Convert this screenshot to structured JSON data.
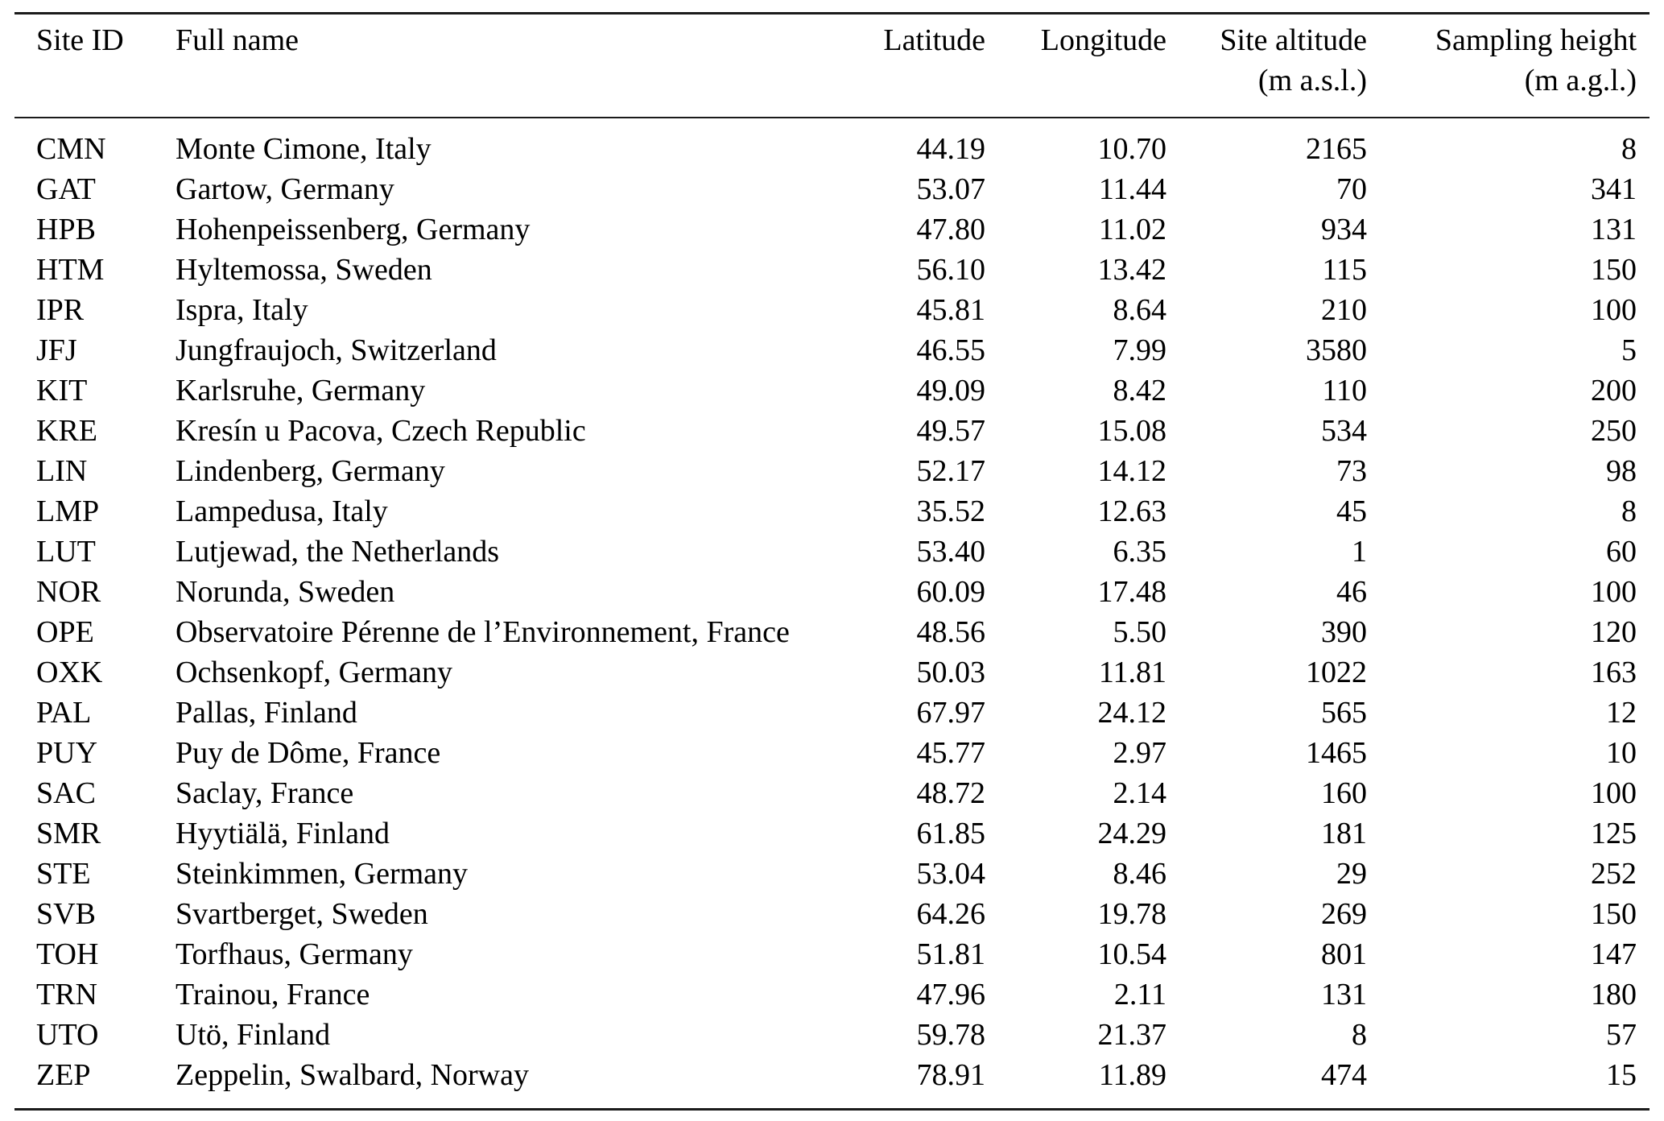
{
  "table": {
    "columns": [
      {
        "label": "Site ID",
        "unit": "",
        "align": "left"
      },
      {
        "label": "Full name",
        "unit": "",
        "align": "left"
      },
      {
        "label": "Latitude",
        "unit": "",
        "align": "right"
      },
      {
        "label": "Longitude",
        "unit": "",
        "align": "right"
      },
      {
        "label": "Site altitude",
        "unit": "(m a.s.l.)",
        "align": "right"
      },
      {
        "label": "Sampling height",
        "unit": "(m a.g.l.)",
        "align": "right"
      }
    ],
    "rows": [
      [
        "CMN",
        "Monte Cimone, Italy",
        "44.19",
        "10.70",
        "2165",
        "8"
      ],
      [
        "GAT",
        "Gartow, Germany",
        "53.07",
        "11.44",
        "70",
        "341"
      ],
      [
        "HPB",
        "Hohenpeissenberg, Germany",
        "47.80",
        "11.02",
        "934",
        "131"
      ],
      [
        "HTM",
        "Hyltemossa, Sweden",
        "56.10",
        "13.42",
        "115",
        "150"
      ],
      [
        "IPR",
        "Ispra, Italy",
        "45.81",
        "8.64",
        "210",
        "100"
      ],
      [
        "JFJ",
        "Jungfraujoch, Switzerland",
        "46.55",
        "7.99",
        "3580",
        "5"
      ],
      [
        "KIT",
        "Karlsruhe, Germany",
        "49.09",
        "8.42",
        "110",
        "200"
      ],
      [
        "KRE",
        "Kresín u Pacova, Czech Republic",
        "49.57",
        "15.08",
        "534",
        "250"
      ],
      [
        "LIN",
        "Lindenberg, Germany",
        "52.17",
        "14.12",
        "73",
        "98"
      ],
      [
        "LMP",
        "Lampedusa, Italy",
        "35.52",
        "12.63",
        "45",
        "8"
      ],
      [
        "LUT",
        "Lutjewad, the Netherlands",
        "53.40",
        "6.35",
        "1",
        "60"
      ],
      [
        "NOR",
        "Norunda, Sweden",
        "60.09",
        "17.48",
        "46",
        "100"
      ],
      [
        "OPE",
        "Observatoire Pérenne de l’Environnement, France",
        "48.56",
        "5.50",
        "390",
        "120"
      ],
      [
        "OXK",
        "Ochsenkopf, Germany",
        "50.03",
        "11.81",
        "1022",
        "163"
      ],
      [
        "PAL",
        "Pallas, Finland",
        "67.97",
        "24.12",
        "565",
        "12"
      ],
      [
        "PUY",
        "Puy de Dôme, France",
        "45.77",
        "2.97",
        "1465",
        "10"
      ],
      [
        "SAC",
        "Saclay, France",
        "48.72",
        "2.14",
        "160",
        "100"
      ],
      [
        "SMR",
        "Hyytiälä, Finland",
        "61.85",
        "24.29",
        "181",
        "125"
      ],
      [
        "STE",
        "Steinkimmen, Germany",
        "53.04",
        "8.46",
        "29",
        "252"
      ],
      [
        "SVB",
        "Svartberget, Sweden",
        "64.26",
        "19.78",
        "269",
        "150"
      ],
      [
        "TOH",
        "Torfhaus, Germany",
        "51.81",
        "10.54",
        "801",
        "147"
      ],
      [
        "TRN",
        "Trainou, France",
        "47.96",
        "2.11",
        "131",
        "180"
      ],
      [
        "UTO",
        "Utö, Finland",
        "59.78",
        "21.37",
        "8",
        "57"
      ],
      [
        "ZEP",
        "Zeppelin, Swalbard, Norway",
        "78.91",
        "11.89",
        "474",
        "15"
      ]
    ]
  }
}
